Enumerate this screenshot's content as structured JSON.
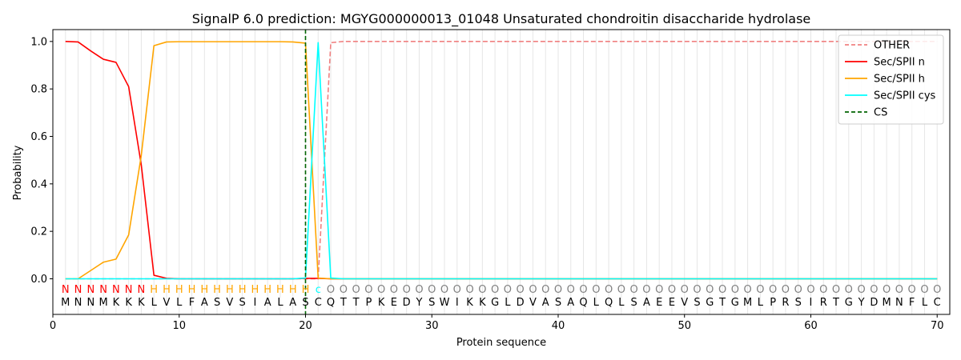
{
  "chart_data": {
    "type": "line",
    "title": "SignalP 6.0 prediction: MGYG000000013_01048 Unsaturated chondroitin disaccharide hydrolase",
    "xlabel": "Protein sequence",
    "ylabel": "Probability",
    "xlim": [
      0,
      71
    ],
    "ylim": [
      -0.15,
      1.05
    ],
    "xticks": [
      0,
      10,
      20,
      30,
      40,
      50,
      60,
      70
    ],
    "yticks": [
      0.0,
      0.2,
      0.4,
      0.6,
      0.8,
      1.0
    ],
    "x": [
      1,
      2,
      3,
      4,
      5,
      6,
      7,
      8,
      9,
      10,
      11,
      12,
      13,
      14,
      15,
      16,
      17,
      18,
      19,
      20,
      21,
      22,
      23,
      24,
      25,
      26,
      27,
      28,
      29,
      30,
      31,
      32,
      33,
      34,
      35,
      36,
      37,
      38,
      39,
      40,
      41,
      42,
      43,
      44,
      45,
      46,
      47,
      48,
      49,
      50,
      51,
      52,
      53,
      54,
      55,
      56,
      57,
      58,
      59,
      60,
      61,
      62,
      63,
      64,
      65,
      66,
      67,
      68,
      69,
      70
    ],
    "sequence": [
      "M",
      "N",
      "N",
      "M",
      "K",
      "K",
      "K",
      "L",
      "V",
      "L",
      "F",
      "A",
      "S",
      "V",
      "S",
      "I",
      "A",
      "L",
      "A",
      "S",
      "C",
      "Q",
      "T",
      "T",
      "P",
      "K",
      "E",
      "D",
      "Y",
      "S",
      "W",
      "I",
      "K",
      "K",
      "G",
      "L",
      "D",
      "V",
      "A",
      "S",
      "A",
      "Q",
      "L",
      "Q",
      "L",
      "S",
      "A",
      "E",
      "E",
      "V",
      "S",
      "G",
      "T",
      "G",
      "M",
      "L",
      "P",
      "R",
      "S",
      "I",
      "R",
      "T",
      "G",
      "Y",
      "D",
      "M",
      "N",
      "F",
      "L",
      "C"
    ],
    "labels": [
      "N",
      "N",
      "N",
      "N",
      "N",
      "N",
      "N",
      "H",
      "H",
      "H",
      "H",
      "H",
      "H",
      "H",
      "H",
      "H",
      "H",
      "H",
      "H",
      "H",
      "c",
      "O",
      "O",
      "O",
      "O",
      "O",
      "O",
      "O",
      "O",
      "O",
      "O",
      "O",
      "O",
      "O",
      "O",
      "O",
      "O",
      "O",
      "O",
      "O",
      "O",
      "O",
      "O",
      "O",
      "O",
      "O",
      "O",
      "O",
      "O",
      "O",
      "O",
      "O",
      "O",
      "O",
      "O",
      "O",
      "O",
      "O",
      "O",
      "O",
      "O",
      "O",
      "O",
      "O",
      "O",
      "O",
      "O",
      "O",
      "O",
      "O"
    ],
    "label_colors": {
      "N": "#ff0000",
      "H": "#ffa500",
      "c": "#00ffff",
      "O": "#808080"
    },
    "series": [
      {
        "name": "OTHER",
        "color": "#f08080",
        "dashed": true,
        "values": [
          0,
          0,
          0,
          0,
          0,
          0,
          0,
          0,
          0,
          0,
          0,
          0,
          0,
          0,
          0,
          0,
          0,
          0,
          0,
          0,
          0,
          0.995,
          1,
          1,
          1,
          1,
          1,
          1,
          1,
          1,
          1,
          1,
          1,
          1,
          1,
          1,
          1,
          1,
          1,
          1,
          1,
          1,
          1,
          1,
          1,
          1,
          1,
          1,
          1,
          1,
          1,
          1,
          1,
          1,
          1,
          1,
          1,
          1,
          1,
          1,
          1,
          1,
          1,
          1,
          1,
          1,
          1,
          1,
          1,
          1
        ]
      },
      {
        "name": "Sec/SPII n",
        "color": "#ff0000",
        "dashed": false,
        "values": [
          1.0,
          0.998,
          0.96,
          0.925,
          0.912,
          0.81,
          0.48,
          0.015,
          0.002,
          0,
          0,
          0,
          0,
          0,
          0,
          0,
          0,
          0,
          0,
          0.002,
          0.002,
          0,
          0,
          0,
          0,
          0,
          0,
          0,
          0,
          0,
          0,
          0,
          0,
          0,
          0,
          0,
          0,
          0,
          0,
          0,
          0,
          0,
          0,
          0,
          0,
          0,
          0,
          0,
          0,
          0,
          0,
          0,
          0,
          0,
          0,
          0,
          0,
          0,
          0,
          0,
          0,
          0,
          0,
          0,
          0,
          0,
          0,
          0,
          0,
          0
        ]
      },
      {
        "name": "Sec/SPII h",
        "color": "#ffa500",
        "dashed": false,
        "values": [
          0,
          0,
          0.035,
          0.07,
          0.083,
          0.185,
          0.52,
          0.982,
          0.998,
          0.999,
          0.999,
          0.999,
          0.999,
          0.999,
          0.999,
          0.999,
          0.999,
          0.999,
          0.998,
          0.993,
          0.003,
          0,
          0,
          0,
          0,
          0,
          0,
          0,
          0,
          0,
          0,
          0,
          0,
          0,
          0,
          0,
          0,
          0,
          0,
          0,
          0,
          0,
          0,
          0,
          0,
          0,
          0,
          0,
          0,
          0,
          0,
          0,
          0,
          0,
          0,
          0,
          0,
          0,
          0,
          0,
          0,
          0,
          0,
          0,
          0,
          0,
          0,
          0,
          0,
          0
        ]
      },
      {
        "name": "Sec/SPII cys",
        "color": "#00ffff",
        "dashed": false,
        "values": [
          0,
          0,
          0,
          0,
          0,
          0,
          0,
          0,
          0,
          0,
          0,
          0,
          0,
          0,
          0,
          0,
          0,
          0,
          0,
          0.003,
          0.995,
          0.003,
          0,
          0,
          0,
          0,
          0,
          0,
          0,
          0,
          0,
          0,
          0,
          0,
          0,
          0,
          0,
          0,
          0,
          0,
          0,
          0,
          0,
          0,
          0,
          0,
          0,
          0,
          0,
          0,
          0,
          0,
          0,
          0,
          0,
          0,
          0,
          0,
          0,
          0,
          0,
          0,
          0,
          0,
          0,
          0,
          0,
          0,
          0,
          0
        ]
      }
    ],
    "cs": {
      "name": "CS",
      "color": "#006400",
      "x": 20
    },
    "legend_position": "top-right",
    "grid": "vertical"
  }
}
